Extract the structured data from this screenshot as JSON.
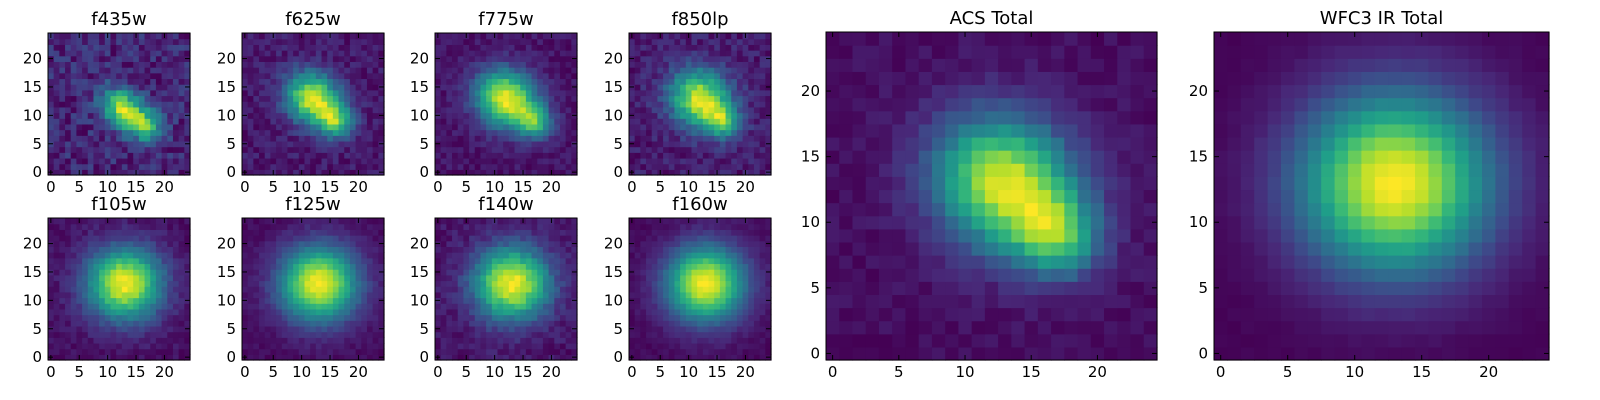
{
  "figure": {
    "colormap": "viridis",
    "colormap_stops": [
      "#440154",
      "#482878",
      "#3e4989",
      "#31688e",
      "#26828e",
      "#1f9e89",
      "#35b779",
      "#6ece58",
      "#b5de2b",
      "#fde725"
    ]
  },
  "chart_data": [
    {
      "type": "heatmap",
      "title": "f435w",
      "grid": [
        25,
        25
      ],
      "xlim": [
        -0.5,
        24.5
      ],
      "ylim": [
        -0.5,
        24.5
      ],
      "xticks": [
        "0",
        "5",
        "10",
        "15",
        "20"
      ],
      "yticks": [
        "0",
        "5",
        "10",
        "15",
        "20"
      ],
      "peak": [
        13,
        11
      ],
      "sigma": [
        3.0,
        2.2
      ],
      "angle": -40,
      "secondary": {
        "peak": [
          17,
          8
        ],
        "sigma": [
          2.0,
          1.8
        ],
        "amp": 0.6
      },
      "background": 0.45,
      "noise": 0.28,
      "seed": 11
    },
    {
      "type": "heatmap",
      "title": "f625w",
      "grid": [
        25,
        25
      ],
      "xlim": [
        -0.5,
        24.5
      ],
      "ylim": [
        -0.5,
        24.5
      ],
      "xticks": [
        "0",
        "5",
        "10",
        "15",
        "20"
      ],
      "yticks": [
        "0",
        "5",
        "10",
        "15",
        "20"
      ],
      "peak": [
        12,
        13
      ],
      "sigma": [
        3.5,
        3.0
      ],
      "angle": -35,
      "secondary": {
        "peak": [
          16,
          9
        ],
        "sigma": [
          2.2,
          2.0
        ],
        "amp": 0.65
      },
      "background": 0.22,
      "noise": 0.16,
      "seed": 23
    },
    {
      "type": "heatmap",
      "title": "f775w",
      "grid": [
        25,
        25
      ],
      "xlim": [
        -0.5,
        24.5
      ],
      "ylim": [
        -0.5,
        24.5
      ],
      "xticks": [
        "0",
        "5",
        "10",
        "15",
        "20"
      ],
      "yticks": [
        "0",
        "5",
        "10",
        "15",
        "20"
      ],
      "peak": [
        12,
        13
      ],
      "sigma": [
        3.8,
        3.4
      ],
      "angle": -35,
      "secondary": {
        "peak": [
          17,
          9
        ],
        "sigma": [
          2.3,
          2.0
        ],
        "amp": 0.6
      },
      "background": 0.15,
      "noise": 0.12,
      "seed": 37
    },
    {
      "type": "heatmap",
      "title": "f850lp",
      "grid": [
        25,
        25
      ],
      "xlim": [
        -0.5,
        24.5
      ],
      "ylim": [
        -0.5,
        24.5
      ],
      "xticks": [
        "0",
        "5",
        "10",
        "15",
        "20"
      ],
      "yticks": [
        "0",
        "5",
        "10",
        "15",
        "20"
      ],
      "peak": [
        12,
        13
      ],
      "sigma": [
        3.8,
        3.4
      ],
      "angle": -35,
      "secondary": {
        "peak": [
          16,
          9
        ],
        "sigma": [
          2.3,
          2.0
        ],
        "amp": 0.6
      },
      "background": 0.18,
      "noise": 0.18,
      "seed": 41
    },
    {
      "type": "heatmap",
      "title": "f105w",
      "grid": [
        25,
        25
      ],
      "xlim": [
        -0.5,
        24.5
      ],
      "ylim": [
        -0.5,
        24.5
      ],
      "xticks": [
        "0",
        "5",
        "10",
        "15",
        "20"
      ],
      "yticks": [
        "0",
        "5",
        "10",
        "15",
        "20"
      ],
      "peak": [
        13,
        13
      ],
      "sigma": [
        4.6,
        4.4
      ],
      "angle": 0,
      "secondary": null,
      "background": 0.12,
      "noise": 0.1,
      "seed": 53
    },
    {
      "type": "heatmap",
      "title": "f125w",
      "grid": [
        25,
        25
      ],
      "xlim": [
        -0.5,
        24.5
      ],
      "ylim": [
        -0.5,
        24.5
      ],
      "xticks": [
        "0",
        "5",
        "10",
        "15",
        "20"
      ],
      "yticks": [
        "0",
        "5",
        "10",
        "15",
        "20"
      ],
      "peak": [
        13,
        13
      ],
      "sigma": [
        4.8,
        4.6
      ],
      "angle": 0,
      "secondary": null,
      "background": 0.08,
      "noise": 0.07,
      "seed": 61
    },
    {
      "type": "heatmap",
      "title": "f140w",
      "grid": [
        25,
        25
      ],
      "xlim": [
        -0.5,
        24.5
      ],
      "ylim": [
        -0.5,
        24.5
      ],
      "xticks": [
        "0",
        "5",
        "10",
        "15",
        "20"
      ],
      "yticks": [
        "0",
        "5",
        "10",
        "15",
        "20"
      ],
      "peak": [
        13,
        13
      ],
      "sigma": [
        4.6,
        4.4
      ],
      "angle": 0,
      "secondary": null,
      "background": 0.12,
      "noise": 0.12,
      "seed": 73
    },
    {
      "type": "heatmap",
      "title": "f160w",
      "grid": [
        25,
        25
      ],
      "xlim": [
        -0.5,
        24.5
      ],
      "ylim": [
        -0.5,
        24.5
      ],
      "xticks": [
        "0",
        "5",
        "10",
        "15",
        "20"
      ],
      "yticks": [
        "0",
        "5",
        "10",
        "15",
        "20"
      ],
      "peak": [
        13,
        13
      ],
      "sigma": [
        4.8,
        4.6
      ],
      "angle": 0,
      "secondary": null,
      "background": 0.06,
      "noise": 0.06,
      "seed": 89
    },
    {
      "type": "heatmap",
      "title": "ACS Total",
      "grid": [
        25,
        25
      ],
      "xlim": [
        -0.5,
        24.5
      ],
      "ylim": [
        -0.5,
        24.5
      ],
      "xticks": [
        "0",
        "5",
        "10",
        "15",
        "20"
      ],
      "yticks": [
        "0",
        "5",
        "10",
        "15",
        "20"
      ],
      "peak": [
        13,
        13
      ],
      "sigma": [
        3.8,
        3.4
      ],
      "angle": -35,
      "secondary": {
        "peak": [
          17,
          9
        ],
        "sigma": [
          2.3,
          2.1
        ],
        "amp": 0.6
      },
      "background": 0.12,
      "noise": 0.08,
      "seed": 97
    },
    {
      "type": "heatmap",
      "title": "WFC3 IR Total",
      "grid": [
        25,
        25
      ],
      "xlim": [
        -0.5,
        24.5
      ],
      "ylim": [
        -0.5,
        24.5
      ],
      "xticks": [
        "0",
        "5",
        "10",
        "15",
        "20"
      ],
      "yticks": [
        "0",
        "5",
        "10",
        "15",
        "20"
      ],
      "peak": [
        13,
        13
      ],
      "sigma": [
        5.0,
        4.8
      ],
      "angle": 0,
      "secondary": null,
      "background": 0.04,
      "noise": 0.02,
      "seed": 101
    }
  ]
}
